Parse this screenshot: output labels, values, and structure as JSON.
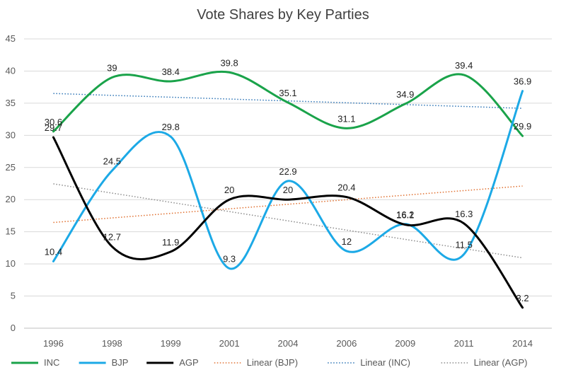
{
  "chart_data": {
    "type": "line",
    "title": "Vote Shares by Key Parties",
    "xlabel": "",
    "ylabel": "",
    "categories": [
      "1996",
      "1998",
      "1999",
      "2001",
      "2004",
      "2006",
      "2009",
      "2011",
      "2014"
    ],
    "ylim": [
      0,
      45
    ],
    "yticks": [
      0,
      5,
      10,
      15,
      20,
      25,
      30,
      35,
      40,
      45
    ],
    "grid": true,
    "legend_position": "bottom",
    "series": [
      {
        "name": "INC",
        "values": [
          30.6,
          39,
          38.4,
          39.8,
          35.1,
          31.1,
          34.9,
          39.4,
          29.9
        ],
        "color": "#1aa34a",
        "smooth": true
      },
      {
        "name": "BJP",
        "values": [
          10.4,
          24.5,
          29.8,
          9.3,
          22.9,
          12,
          16.2,
          11.5,
          36.9
        ],
        "color": "#1ca9e6",
        "smooth": true
      },
      {
        "name": "AGP",
        "values": [
          29.7,
          12.7,
          11.9,
          20,
          20,
          20.4,
          16.1,
          16.3,
          3.2
        ],
        "color": "#000000",
        "smooth": true
      }
    ],
    "trendlines": [
      {
        "name": "Linear (BJP)",
        "of": "BJP",
        "color": "#e07030"
      },
      {
        "name": "Linear (INC)",
        "of": "INC",
        "color": "#2e75b6"
      },
      {
        "name": "Linear (AGP)",
        "of": "AGP",
        "color": "#8c8c8c"
      }
    ]
  }
}
